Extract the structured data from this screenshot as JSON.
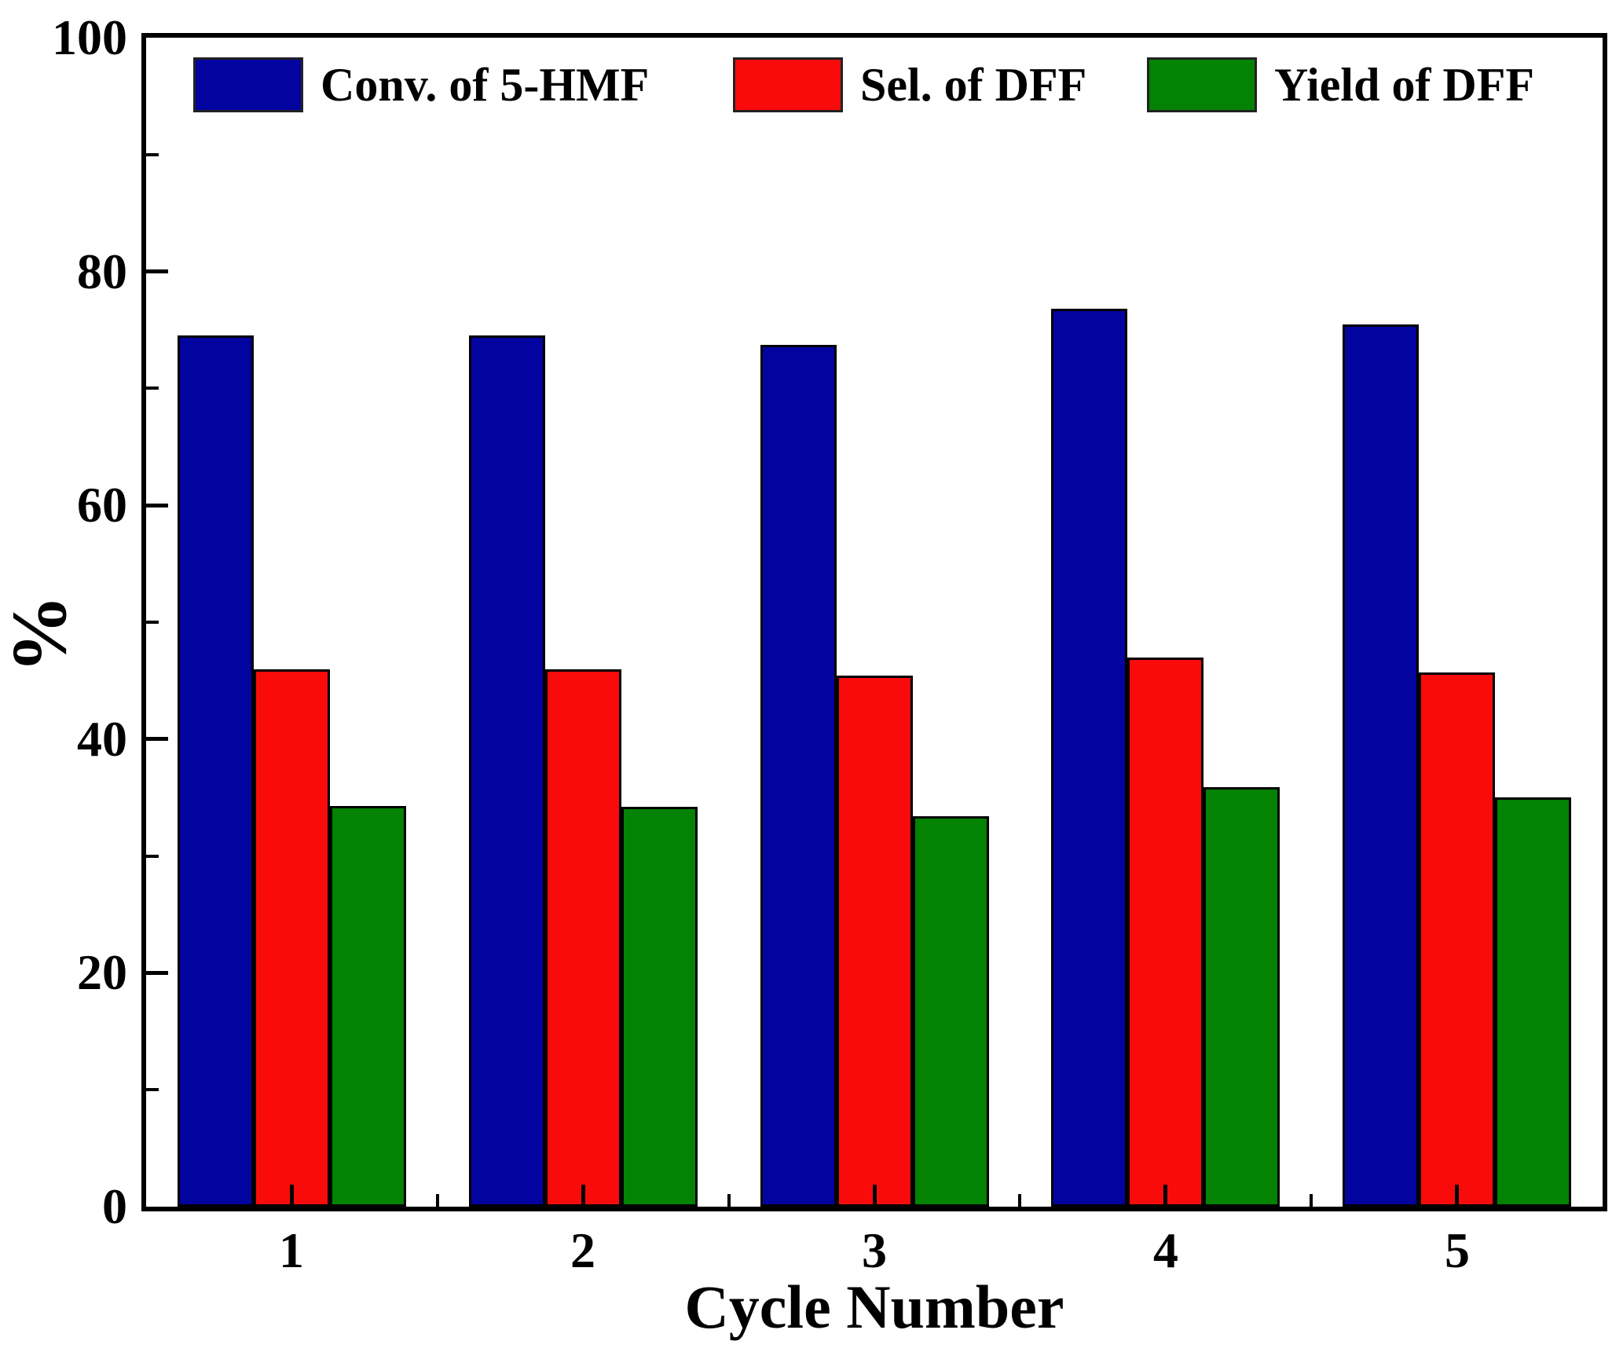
{
  "figure": {
    "background": "#ffffff",
    "frame_color": "#000000",
    "text_color": "#000000"
  },
  "chart_data": {
    "type": "bar",
    "title": "",
    "categories": [
      "1",
      "2",
      "3",
      "4",
      "5"
    ],
    "series": [
      {
        "name": "Conv. of 5-HMF",
        "color": "#0303A0",
        "values": [
          74.5,
          74.5,
          73.7,
          76.8,
          75.5
        ]
      },
      {
        "name": "Sel. of DFF",
        "color": "#F90B0B",
        "values": [
          46.0,
          46.0,
          45.4,
          47.0,
          45.7
        ]
      },
      {
        "name": "Yield of DFF",
        "color": "#038203",
        "values": [
          34.3,
          34.2,
          33.4,
          35.9,
          35.0
        ]
      }
    ],
    "xlabel": "Cycle Number",
    "ylabel": "%",
    "ylim": [
      0,
      100
    ],
    "yticks": [
      0,
      20,
      40,
      60,
      80,
      100
    ],
    "ytick_labels": [
      "0",
      "20",
      "40",
      "60",
      "80",
      "100"
    ],
    "minor_ytick_step": 10,
    "minor_xticks_between_groups": true,
    "bar_edge_color": "#000000",
    "legend_position": "top-inside",
    "grid": false
  }
}
